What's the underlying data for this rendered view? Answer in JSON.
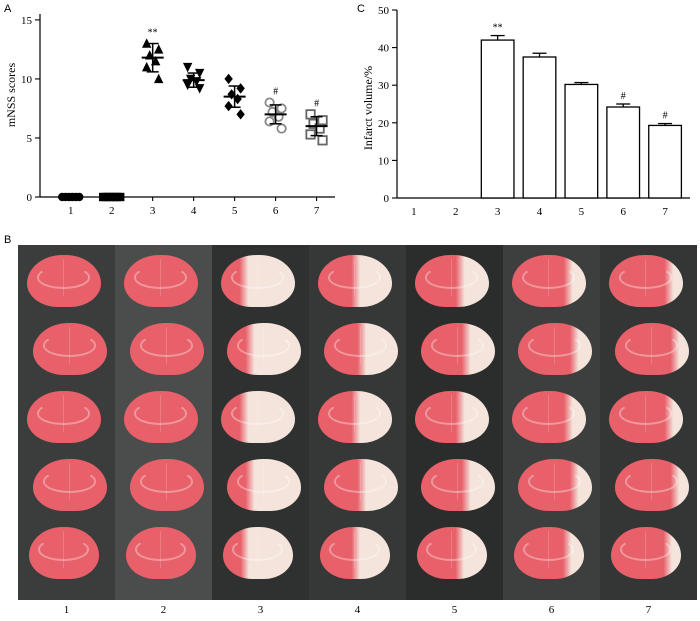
{
  "panels": {
    "a": "A",
    "b": "B",
    "c": "C"
  },
  "chart_data": [
    {
      "type": "scatter",
      "panel": "A",
      "ylabel": "mNSS scores",
      "xlabel": "",
      "categories": [
        "1",
        "2",
        "3",
        "4",
        "5",
        "6",
        "7"
      ],
      "yticks": [
        0,
        5,
        10,
        15
      ],
      "ylim": [
        0,
        15.5
      ],
      "grid": false,
      "groups": [
        {
          "category": "1",
          "marker": "circle",
          "fill": "#000000",
          "mean": 0,
          "sd": 0,
          "points": [
            0,
            0,
            0,
            0,
            0,
            0
          ],
          "annotation": ""
        },
        {
          "category": "2",
          "marker": "square",
          "fill": "#000000",
          "mean": 0,
          "sd": 0,
          "points": [
            0,
            0,
            0,
            0,
            0,
            0
          ],
          "annotation": ""
        },
        {
          "category": "3",
          "marker": "triangle-up",
          "fill": "#000000",
          "mean": 11.8,
          "sd": 1.2,
          "points": [
            13,
            12.5,
            12,
            11.5,
            11,
            10
          ],
          "annotation": "**"
        },
        {
          "category": "4",
          "marker": "triangle-down",
          "fill": "#000000",
          "mean": 9.9,
          "sd": 0.6,
          "points": [
            11,
            10.5,
            10,
            9.8,
            9.5,
            9.2
          ],
          "annotation": ""
        },
        {
          "category": "5",
          "marker": "diamond",
          "fill": "#000000",
          "mean": 8.5,
          "sd": 0.9,
          "points": [
            10,
            9.2,
            8.7,
            8.3,
            7.7,
            7
          ],
          "annotation": ""
        },
        {
          "category": "6",
          "marker": "circle-open",
          "fill": "#888888",
          "mean": 7.0,
          "sd": 0.8,
          "points": [
            8,
            7.5,
            7.2,
            6.8,
            6.4,
            5.8
          ],
          "annotation": "#"
        },
        {
          "category": "7",
          "marker": "square-open",
          "fill": "#666666",
          "mean": 6.0,
          "sd": 0.8,
          "points": [
            7,
            6.5,
            6.2,
            5.8,
            5.3,
            4.8
          ],
          "annotation": "#"
        }
      ]
    },
    {
      "type": "bar",
      "panel": "C",
      "ylabel": "Infarct volume/%",
      "xlabel": "",
      "categories": [
        "1",
        "2",
        "3",
        "4",
        "5",
        "6",
        "7"
      ],
      "values": [
        0,
        0,
        42,
        37.5,
        30.2,
        24.2,
        19.3
      ],
      "errors": [
        0,
        0,
        1.2,
        1.0,
        0.5,
        0.8,
        0.5
      ],
      "annotations": [
        "",
        "",
        "**",
        "",
        "",
        "#",
        "#"
      ],
      "yticks": [
        0,
        10,
        20,
        30,
        40,
        50
      ],
      "ylim": [
        0,
        50
      ],
      "grid": false
    }
  ],
  "photo": {
    "lane_labels": [
      "1",
      "2",
      "3",
      "4",
      "5",
      "6",
      "7"
    ],
    "colors": {
      "background": "#2b2f2f",
      "healthy_tissue": "#e8606a",
      "infarct_tissue": "#f4e4dc"
    },
    "infarct_fraction": [
      0,
      0,
      0.75,
      0.55,
      0.45,
      0.3,
      0.25
    ]
  }
}
